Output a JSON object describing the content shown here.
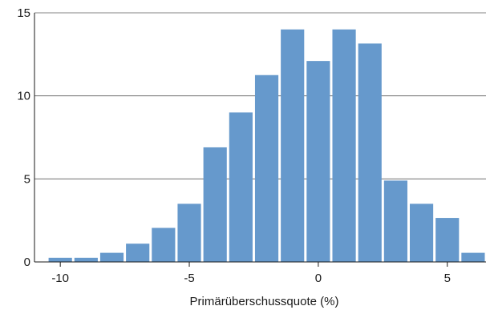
{
  "chart_data": {
    "type": "bar",
    "subtype": "histogram",
    "title": "",
    "xlabel": "Primärüberschussquote (%)",
    "ylabel": "",
    "xlim": [
      -11,
      6.5
    ],
    "ylim": [
      0,
      15
    ],
    "x_ticks": [
      -10,
      -5,
      0,
      5
    ],
    "x_tick_labels": [
      "-10",
      "-5",
      "0",
      "5"
    ],
    "y_ticks": [
      0,
      5,
      10,
      15
    ],
    "y_tick_labels": [
      "0",
      "5",
      "10",
      "15"
    ],
    "grid": "horizontal",
    "legend": "none",
    "bar_color": "#6699cc",
    "bin_width": 1,
    "bins": [
      {
        "from": -10.5,
        "to": -9.5,
        "value": 0.25
      },
      {
        "from": -9.5,
        "to": -8.5,
        "value": 0.25
      },
      {
        "from": -8.5,
        "to": -7.5,
        "value": 0.55
      },
      {
        "from": -7.5,
        "to": -6.5,
        "value": 1.1
      },
      {
        "from": -6.5,
        "to": -5.5,
        "value": 2.05
      },
      {
        "from": -5.5,
        "to": -4.5,
        "value": 3.5
      },
      {
        "from": -4.5,
        "to": -3.5,
        "value": 6.9
      },
      {
        "from": -3.5,
        "to": -2.5,
        "value": 9.0
      },
      {
        "from": -2.5,
        "to": -1.5,
        "value": 11.25
      },
      {
        "from": -1.5,
        "to": -0.5,
        "value": 14.0
      },
      {
        "from": -0.5,
        "to": 0.5,
        "value": 12.1
      },
      {
        "from": 0.5,
        "to": 1.5,
        "value": 14.0
      },
      {
        "from": 1.5,
        "to": 2.5,
        "value": 13.15
      },
      {
        "from": 2.5,
        "to": 3.5,
        "value": 4.9
      },
      {
        "from": 3.5,
        "to": 4.5,
        "value": 3.5
      },
      {
        "from": 4.5,
        "to": 5.5,
        "value": 2.65
      },
      {
        "from": 5.5,
        "to": 6.5,
        "value": 0.55
      }
    ]
  }
}
